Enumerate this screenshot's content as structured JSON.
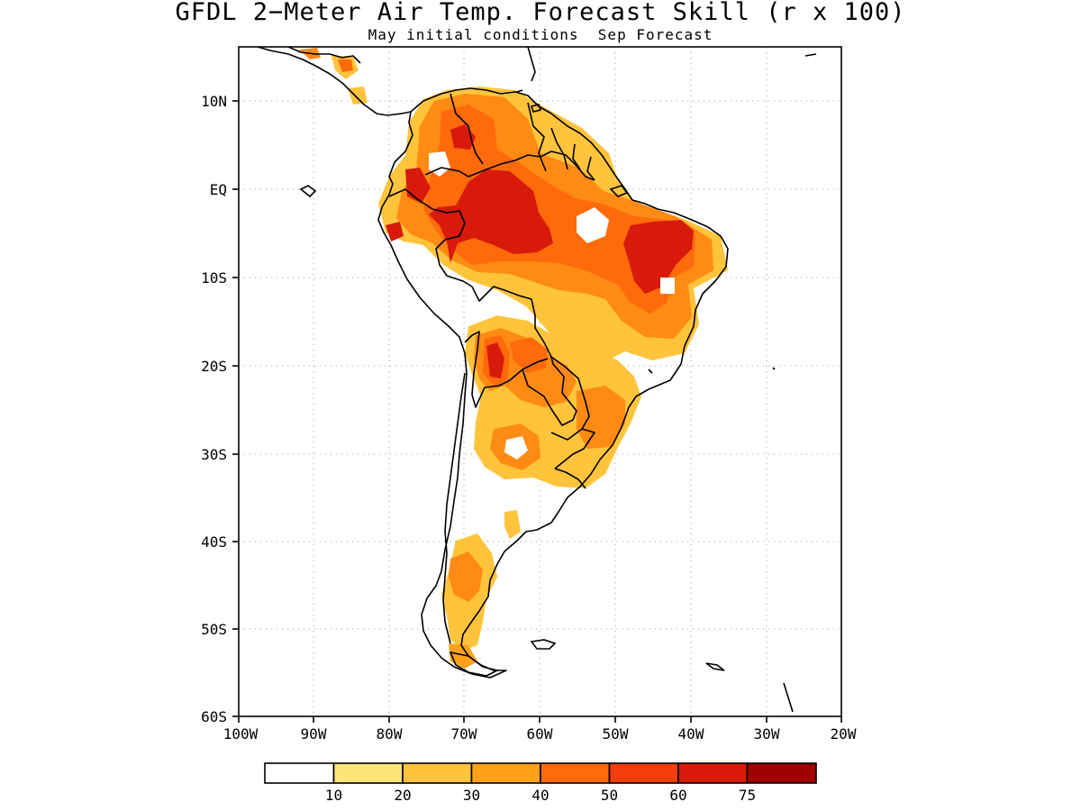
{
  "title": "GFDL 2−Meter Air Temp. Forecast Skill (r x 100)",
  "subtitle": "May initial conditions  Sep Forecast",
  "axes": {
    "lon_ticks": [
      "100W",
      "90W",
      "80W",
      "70W",
      "60W",
      "50W",
      "40W",
      "30W",
      "20W"
    ],
    "lat_ticks": [
      "10N",
      "EQ",
      "10S",
      "20S",
      "30S",
      "40S",
      "50S",
      "60S"
    ],
    "lon_range": [
      -100,
      -20
    ],
    "lat_range": [
      -60,
      15
    ],
    "grid": "dotted"
  },
  "legend": {
    "labels": [
      "10",
      "20",
      "30",
      "40",
      "50",
      "60",
      "75"
    ],
    "colors": [
      "#ffffff",
      "#ffe47a",
      "#ffc43c",
      "#ffa21a",
      "#ff6a0a",
      "#f23d0c",
      "#d81a0a",
      "#a00000"
    ]
  },
  "colors": {
    "c1": "#ffe47a",
    "c2": "#ffc43c",
    "c3": "#ffa21a",
    "c4": "#ff6a0a",
    "c5": "#f23d0c",
    "c6": "#d81a0a",
    "c7": "#a00000"
  }
}
